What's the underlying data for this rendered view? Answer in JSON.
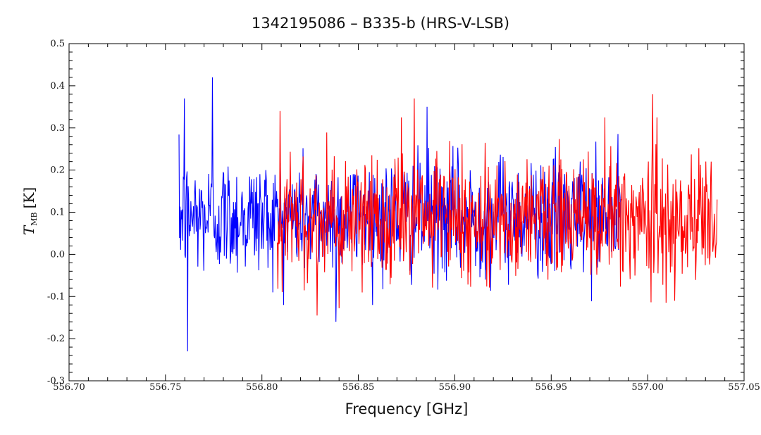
{
  "chart_data": {
    "type": "line",
    "title": "1342195086 – B335-b (HRS-V-LSB)",
    "xlabel": "Frequency [GHz]",
    "ylabel_main": "T",
    "ylabel_sub": "MB",
    "ylabel_unit": "[K]",
    "xlim": [
      556.7,
      557.05
    ],
    "ylim": [
      -0.3,
      0.5
    ],
    "x_ticks": [
      556.7,
      556.75,
      556.8,
      556.85,
      556.9,
      556.95,
      557.0,
      557.05
    ],
    "x_tick_labels": [
      "556.70",
      "556.75",
      "556.80",
      "556.85",
      "556.90",
      "556.95",
      "557.00",
      "557.05"
    ],
    "y_ticks": [
      -0.3,
      -0.2,
      -0.1,
      0.0,
      0.1,
      0.2,
      0.3,
      0.4,
      0.5
    ],
    "y_tick_labels": [
      "-0.3",
      "-0.2",
      "-0.1",
      "0.0",
      "0.1",
      "0.2",
      "0.3",
      "0.4",
      "0.5"
    ],
    "grid": false,
    "legend": "none",
    "series": [
      {
        "color": "#0000ff",
        "x_start": 556.757,
        "x_end": 556.986,
        "n_points": 820,
        "mean": 0.09,
        "std": 0.07,
        "peaks": [
          {
            "x": 556.7742,
            "y": 0.42
          },
          {
            "x": 556.7598,
            "y": 0.37
          },
          {
            "x": 556.7615,
            "y": -0.23
          },
          {
            "x": 556.8857,
            "y": 0.35
          },
          {
            "x": 556.8385,
            "y": -0.16
          }
        ]
      },
      {
        "color": "#ff0000",
        "x_start": 556.808,
        "x_end": 557.036,
        "n_points": 820,
        "mean": 0.085,
        "std": 0.075,
        "peaks": [
          {
            "x": 557.0025,
            "y": 0.38
          },
          {
            "x": 556.879,
            "y": 0.37
          },
          {
            "x": 556.8095,
            "y": 0.34
          },
          {
            "x": 556.8285,
            "y": -0.145
          },
          {
            "x": 557.014,
            "y": -0.11
          }
        ]
      }
    ]
  }
}
